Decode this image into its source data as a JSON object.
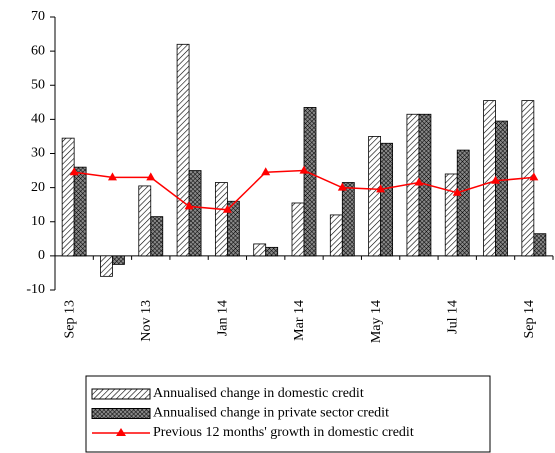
{
  "chart_data": {
    "type": "bar",
    "categories": [
      "Sep 13",
      null,
      "Nov 13",
      null,
      "Jan 14",
      null,
      "Mar 14",
      null,
      "May 14",
      null,
      "Jul 14",
      null,
      "Sep 14"
    ],
    "series": [
      {
        "name": "Annualised change in domestic credit",
        "type": "bar",
        "color": "#000000",
        "pattern": "diagonal",
        "values": [
          34.5,
          -6,
          20.5,
          62,
          21.5,
          3.5,
          15.5,
          12,
          35,
          41.5,
          24,
          45.5,
          45.5
        ]
      },
      {
        "name": "Annualised change in private sector credit",
        "type": "bar",
        "color": "#000000",
        "pattern": "crosshatch",
        "values": [
          26,
          -2.5,
          11.5,
          25,
          16,
          2.5,
          43.5,
          21.5,
          33,
          41.5,
          31,
          39.5,
          6.5
        ]
      },
      {
        "name": "Previous 12 months' growth in domestic credit",
        "type": "line",
        "color": "#ff0000",
        "values": [
          24.5,
          23,
          23,
          14.5,
          13.5,
          24.5,
          25,
          20,
          19.5,
          21.5,
          18.5,
          22,
          23
        ]
      }
    ],
    "ylim": [
      -10,
      70
    ],
    "yticks": [
      -10,
      0,
      10,
      20,
      30,
      40,
      50,
      60,
      70
    ],
    "grid": false,
    "legend": "bottom"
  }
}
